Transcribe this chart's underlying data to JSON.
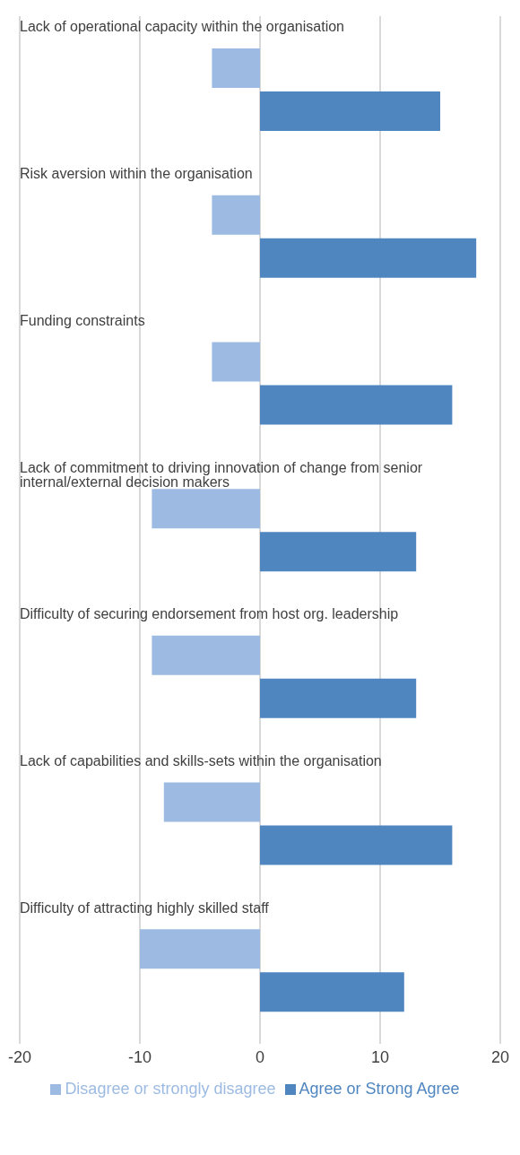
{
  "chart_data": {
    "type": "bar",
    "orientation": "horizontal",
    "categories": [
      "Lack of operational capacity within the organisation",
      "Risk aversion within the organisation",
      "Funding constraints",
      "Lack of commitment to driving innovation of change from senior internal/external decision makers",
      "Difficulty of securing endorsement from host org. leadership",
      "Lack of capabilities and skills-sets within the organisation",
      "Difficulty of attracting highly skilled staff"
    ],
    "series": [
      {
        "name": "Disagree or strongly disagree",
        "color": "#9dbbe2",
        "values": [
          -4,
          -4,
          -4,
          -9,
          -9,
          -8,
          -10
        ]
      },
      {
        "name": "Agree or Strong Agree",
        "color": "#4f86c0",
        "values": [
          15,
          18,
          16,
          13,
          13,
          16,
          12
        ]
      }
    ],
    "xlim": [
      -20,
      20
    ],
    "xticks": [
      -20,
      -10,
      0,
      10,
      20
    ],
    "grid": "x",
    "legend": "bottom"
  }
}
